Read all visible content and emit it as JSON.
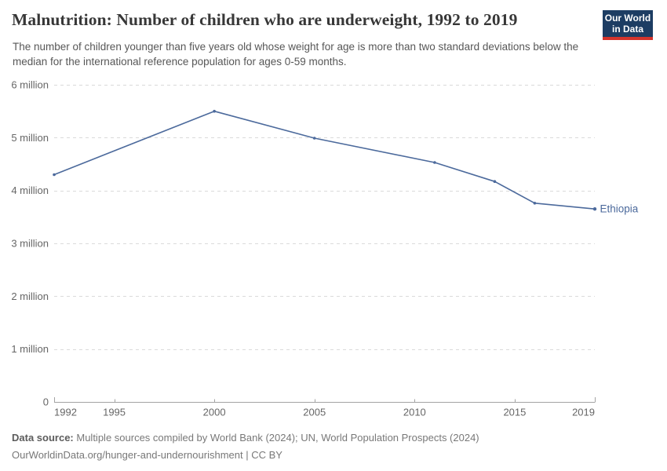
{
  "header": {
    "title": "Malnutrition: Number of children who are underweight, 1992 to 2019",
    "subtitle": "The number of children younger than five years old whose weight for age is more than two standard deviations below the median for the international reference population for ages 0-59 months.",
    "logo": {
      "line1": "Our World",
      "line2": "in Data"
    }
  },
  "chart_data": {
    "type": "line",
    "title": "Malnutrition: Number of children who are underweight, 1992 to 2019",
    "xlabel": "",
    "ylabel": "",
    "unit": "million children",
    "xlim": [
      1992,
      2019
    ],
    "ylim": [
      0,
      6
    ],
    "xticks": [
      1992,
      1995,
      2000,
      2005,
      2010,
      2015,
      2019
    ],
    "yticks": [
      0,
      1,
      2,
      3,
      4,
      5,
      6
    ],
    "ytick_labels": [
      "0",
      "1 million",
      "2 million",
      "3 million",
      "4 million",
      "5 million",
      "6 million"
    ],
    "grid": "horizontal-dashed",
    "legend_position": "line-end-label",
    "series": [
      {
        "name": "Ethiopia",
        "color": "#4c6a9c",
        "x": [
          1992,
          2000,
          2005,
          2011,
          2014,
          2016,
          2019
        ],
        "values": [
          4.3,
          5.5,
          4.99,
          4.53,
          4.17,
          3.76,
          3.65
        ]
      }
    ]
  },
  "footer": {
    "data_source_label": "Data source:",
    "data_source_text": "Multiple sources compiled by World Bank (2024); UN, World Population Prospects (2024)",
    "url": "OurWorldinData.org/hunger-and-undernourishment",
    "separator": "|",
    "license": "CC BY"
  },
  "colors": {
    "line": "#4c6a9c",
    "logo_bg": "#1d3d63",
    "logo_accent": "#d5342c",
    "grid": "#dadada",
    "axis": "#a3a3a3",
    "tick_label": "#666666"
  }
}
